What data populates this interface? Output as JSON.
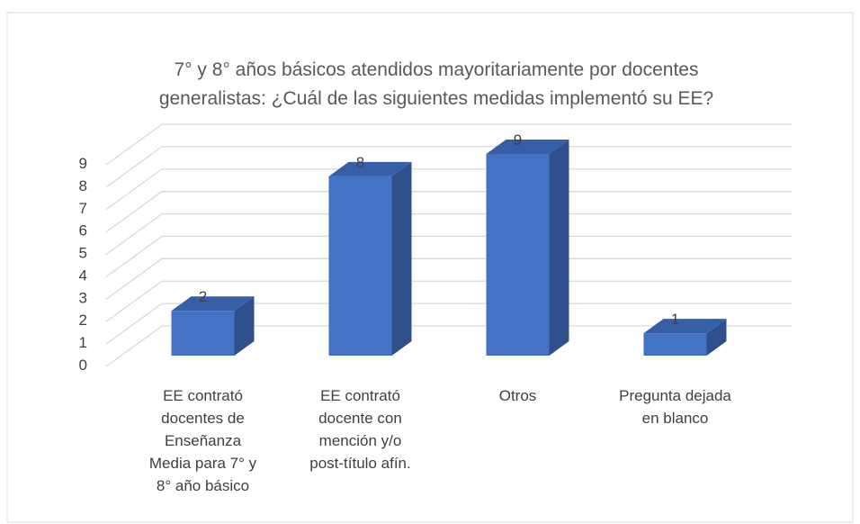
{
  "chart_data": {
    "type": "bar3d",
    "title": "7° y 8° años básicos atendidos mayoritariamente por docentes\ngeneralistas: ¿Cuál de las siguientes medidas implementó su EE?",
    "categories": [
      "EE contrató\ndocentes de\nEnseñanza\nMedia para 7° y\n8° año básico",
      "EE contrató\ndocente con\nmención y/o\npost-título afín.",
      "Otros",
      "Pregunta dejada\nen blanco"
    ],
    "values": [
      2,
      8,
      9,
      1
    ],
    "color": "#4472c4",
    "ylim": [
      0,
      9
    ],
    "yticks": [
      0,
      1,
      2,
      3,
      4,
      5,
      6,
      7,
      8,
      9
    ],
    "grid": true
  }
}
